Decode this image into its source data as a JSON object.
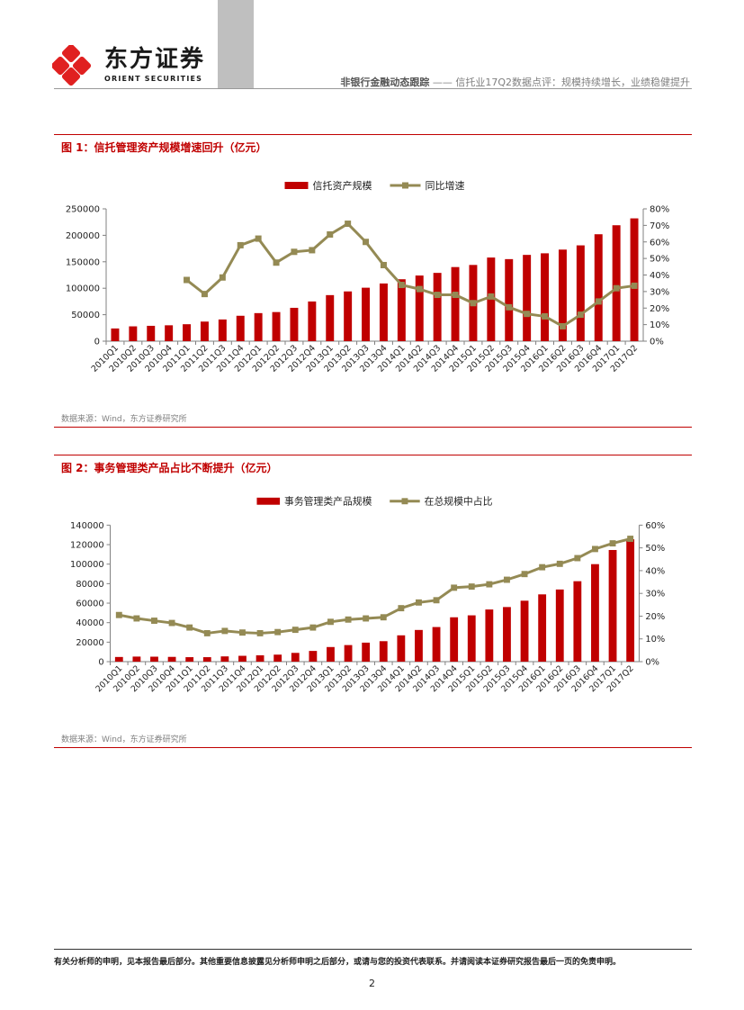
{
  "header": {
    "logo_cn": "东方证券",
    "logo_en": "ORIENT SECURITIES",
    "report_series": "非银行金融动态跟踪",
    "report_dash": "——",
    "report_title": "信托业17Q2数据点评：规模持续增长，业绩稳健提升"
  },
  "figures": [
    {
      "title": "图 1：信托管理资产规模增速回升（亿元）",
      "source": "数据来源：Wind，东方证券研究所"
    },
    {
      "title": "图 2：事务管理类产品占比不断提升（亿元）",
      "source": "数据来源：Wind，东方证券研究所"
    }
  ],
  "chart_data": [
    {
      "type": "bar",
      "categories": [
        "2010Q1",
        "2010Q2",
        "2010Q3",
        "2010Q4",
        "2011Q1",
        "2011Q2",
        "2011Q3",
        "2011Q4",
        "2012Q1",
        "2012Q2",
        "2012Q3",
        "2012Q4",
        "2013Q1",
        "2013Q2",
        "2013Q3",
        "2013Q4",
        "2014Q1",
        "2014Q2",
        "2014Q3",
        "2014Q4",
        "2015Q1",
        "2015Q2",
        "2015Q3",
        "2015Q4",
        "2016Q1",
        "2016Q2",
        "2016Q3",
        "2016Q4",
        "2017Q1",
        "2017Q2"
      ],
      "series": [
        {
          "name": "信托资产规模",
          "type": "bar",
          "axis": "left",
          "values": [
            24000,
            28000,
            29000,
            30000,
            32000,
            37000,
            41000,
            48000,
            53000,
            55000,
            63000,
            75000,
            87000,
            94000,
            101000,
            109000,
            117000,
            124000,
            129000,
            140000,
            144000,
            158000,
            155000,
            163000,
            166000,
            173000,
            181000,
            202000,
            219000,
            232000
          ]
        },
        {
          "name": "同比增速",
          "type": "line",
          "axis": "right",
          "values": [
            null,
            null,
            null,
            null,
            0.37,
            0.285,
            0.385,
            0.58,
            0.62,
            0.475,
            0.54,
            0.55,
            0.645,
            0.71,
            0.6,
            0.46,
            0.34,
            0.315,
            0.28,
            0.28,
            0.23,
            0.27,
            0.205,
            0.165,
            0.15,
            0.09,
            0.16,
            0.24,
            0.32,
            0.335
          ]
        }
      ],
      "ylim_left": [
        0,
        250000
      ],
      "yticks_left": [
        "0",
        "50000",
        "100000",
        "150000",
        "200000",
        "250000"
      ],
      "ylim_right": [
        0,
        0.8
      ],
      "yticks_right": [
        "0%",
        "10%",
        "20%",
        "30%",
        "40%",
        "50%",
        "60%",
        "70%",
        "80%"
      ],
      "legend_position": "top-center",
      "bar_color": "#c00000",
      "line_color": "#948a54",
      "grid": false
    },
    {
      "type": "bar",
      "categories": [
        "2010Q1",
        "2010Q2",
        "2010Q3",
        "2010Q4",
        "2011Q1",
        "2011Q2",
        "2011Q3",
        "2011Q4",
        "2012Q1",
        "2012Q2",
        "2012Q3",
        "2012Q4",
        "2013Q1",
        "2013Q2",
        "2013Q3",
        "2013Q4",
        "2014Q1",
        "2014Q2",
        "2014Q3",
        "2014Q4",
        "2015Q1",
        "2015Q2",
        "2015Q3",
        "2015Q4",
        "2016Q1",
        "2016Q2",
        "2016Q3",
        "2016Q4",
        "2017Q1",
        "2017Q2"
      ],
      "series": [
        {
          "name": "事务管理类产品规模",
          "type": "bar",
          "axis": "left",
          "values": [
            4800,
            5200,
            5100,
            4900,
            4600,
            4600,
            5400,
            6000,
            6500,
            7200,
            9000,
            11000,
            15000,
            17000,
            19500,
            21000,
            27000,
            32500,
            35500,
            45500,
            47500,
            53500,
            56000,
            62500,
            69000,
            74000,
            82500,
            100000,
            114500,
            125500
          ]
        },
        {
          "name": "在总规模中占比",
          "type": "line",
          "axis": "right",
          "values": [
            0.205,
            0.19,
            0.18,
            0.17,
            0.15,
            0.125,
            0.135,
            0.128,
            0.125,
            0.13,
            0.14,
            0.15,
            0.175,
            0.185,
            0.19,
            0.195,
            0.235,
            0.26,
            0.27,
            0.325,
            0.33,
            0.34,
            0.36,
            0.385,
            0.415,
            0.43,
            0.455,
            0.495,
            0.52,
            0.54
          ]
        }
      ],
      "ylim_left": [
        0,
        140000
      ],
      "yticks_left": [
        "0",
        "20000",
        "40000",
        "60000",
        "80000",
        "100000",
        "120000",
        "140000"
      ],
      "ylim_right": [
        0,
        0.6
      ],
      "yticks_right": [
        "0%",
        "10%",
        "20%",
        "30%",
        "40%",
        "50%",
        "60%"
      ],
      "legend_position": "top-center",
      "bar_color": "#c00000",
      "line_color": "#948a54",
      "grid": false
    }
  ],
  "footer": {
    "disclaimer": "有关分析师的申明，见本报告最后部分。其他重要信息披露见分析师申明之后部分，或请与您的投资代表联系。并请阅读本证券研究报告最后一页的免责申明。",
    "page_number": "2"
  }
}
